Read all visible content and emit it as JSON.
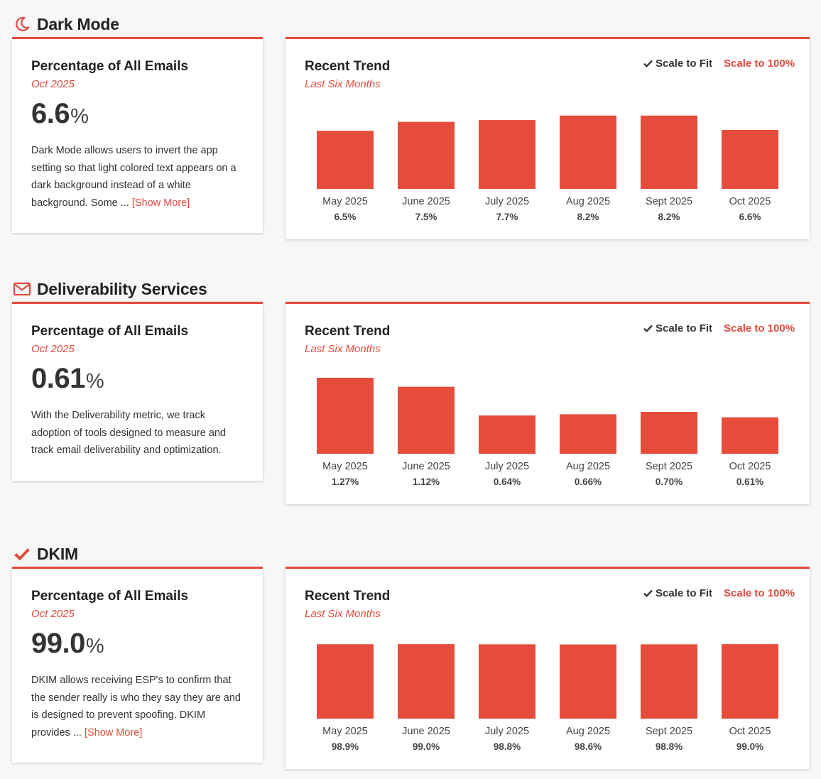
{
  "colors": {
    "accent": "#e24b3d",
    "bar": "#e54c3c"
  },
  "trend_labels": {
    "title": "Recent Trend",
    "subtitle": "Last Six Months",
    "scale_fit": "Scale to Fit",
    "scale_100": "Scale to 100%"
  },
  "sections": [
    {
      "title": "Dark Mode",
      "icon": "moon-icon",
      "card": {
        "title": "Percentage of All Emails",
        "subtitle": "Oct 2025",
        "value": "6.6",
        "unit": "%",
        "description": "Dark Mode allows users to invert the app setting so that light colored text appears on a dark background instead of a white background. Some ...",
        "show_more": "[Show More]"
      }
    },
    {
      "title": "Deliverability Services",
      "icon": "envelope-icon",
      "card": {
        "title": "Percentage of All Emails",
        "subtitle": "Oct 2025",
        "value": "0.61",
        "unit": "%",
        "description": "With the Deliverability metric, we track adoption of tools designed to measure and track email deliverability and optimization.",
        "show_more": ""
      }
    },
    {
      "title": "DKIM",
      "icon": "checkmark-icon",
      "card": {
        "title": "Percentage of All Emails",
        "subtitle": "Oct 2025",
        "value": "99.0",
        "unit": "%",
        "description": "DKIM allows receiving ESP's to confirm that the sender really is who they say they are and is designed to prevent spoofing. DKIM provides ...",
        "show_more": "[Show More]"
      }
    }
  ],
  "chart_data": [
    {
      "type": "bar",
      "title": "Recent Trend",
      "subtitle": "Last Six Months",
      "categories": [
        "May 2025",
        "June 2025",
        "July 2025",
        "Aug 2025",
        "Sept 2025",
        "Oct 2025"
      ],
      "values": [
        6.5,
        7.5,
        7.7,
        8.2,
        8.2,
        6.6
      ],
      "value_labels": [
        "6.5%",
        "7.5%",
        "7.7%",
        "8.2%",
        "8.2%",
        "6.6%"
      ],
      "ylim": [
        0,
        8.5
      ],
      "grid": false
    },
    {
      "type": "bar",
      "title": "Recent Trend",
      "subtitle": "Last Six Months",
      "categories": [
        "May 2025",
        "June 2025",
        "July 2025",
        "Aug 2025",
        "Sept 2025",
        "Oct 2025"
      ],
      "values": [
        1.27,
        1.12,
        0.64,
        0.66,
        0.7,
        0.61
      ],
      "value_labels": [
        "1.27%",
        "1.12%",
        "0.64%",
        "0.66%",
        "0.70%",
        "0.61%"
      ],
      "ylim": [
        0,
        1.27
      ],
      "grid": false
    },
    {
      "type": "bar",
      "title": "Recent Trend",
      "subtitle": "Last Six Months",
      "categories": [
        "May 2025",
        "June 2025",
        "July 2025",
        "Aug 2025",
        "Sept 2025",
        "Oct 2025"
      ],
      "values": [
        98.9,
        99.0,
        98.8,
        98.6,
        98.8,
        99.0
      ],
      "value_labels": [
        "98.9%",
        "99.0%",
        "98.8%",
        "98.6%",
        "98.8%",
        "99.0%"
      ],
      "ylim": [
        0,
        101
      ],
      "grid": false
    }
  ]
}
